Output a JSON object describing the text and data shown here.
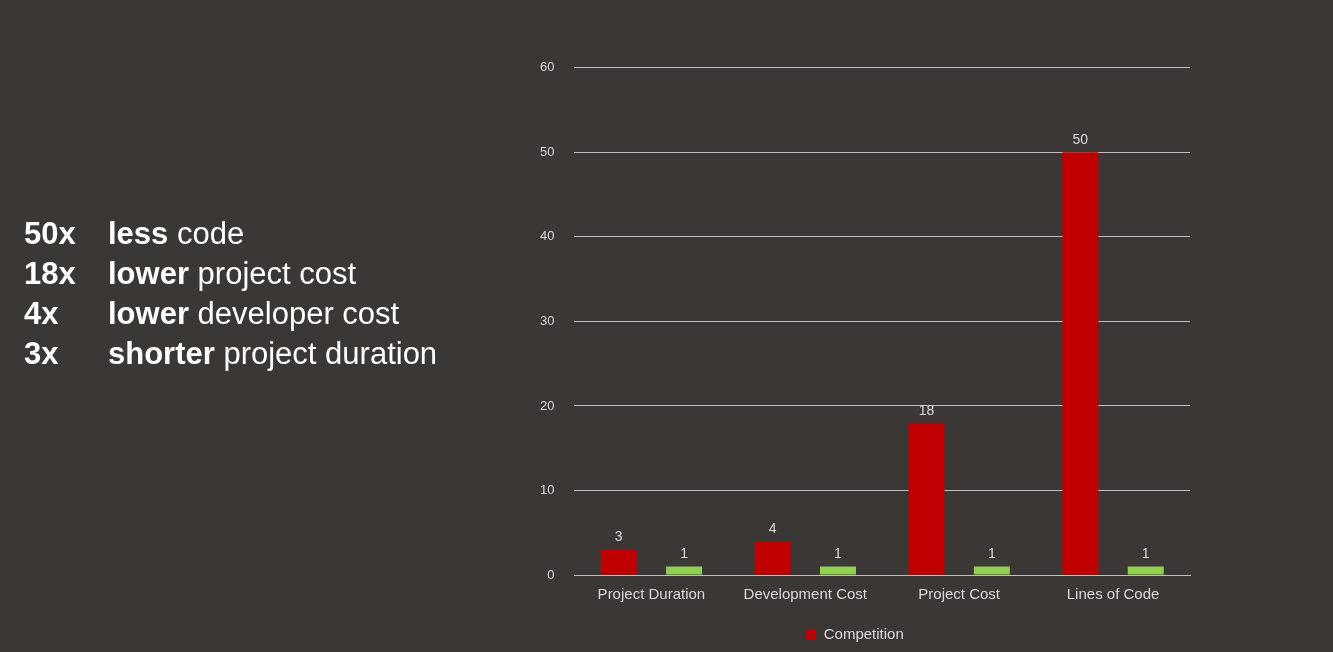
{
  "chart_data": {
    "type": "bar",
    "categories": [
      "Project Duration",
      "Development Cost",
      "Project Cost",
      "Lines of Code"
    ],
    "series": [
      {
        "name": "Competition",
        "color": "#c00000",
        "values": [
          3,
          4,
          18,
          50
        ]
      },
      {
        "color": "#92d050",
        "values": [
          1,
          1,
          1,
          1
        ]
      }
    ],
    "ylim": [
      0,
      60
    ],
    "yticks": [
      0,
      10,
      20,
      30,
      40,
      50,
      60
    ],
    "grid": "y",
    "legend": "bottom",
    "data_labels": true,
    "annotations": [
      "50x less code",
      "18x lower project cost",
      "4x lower developer cost",
      "3x shorter project duration"
    ]
  }
}
